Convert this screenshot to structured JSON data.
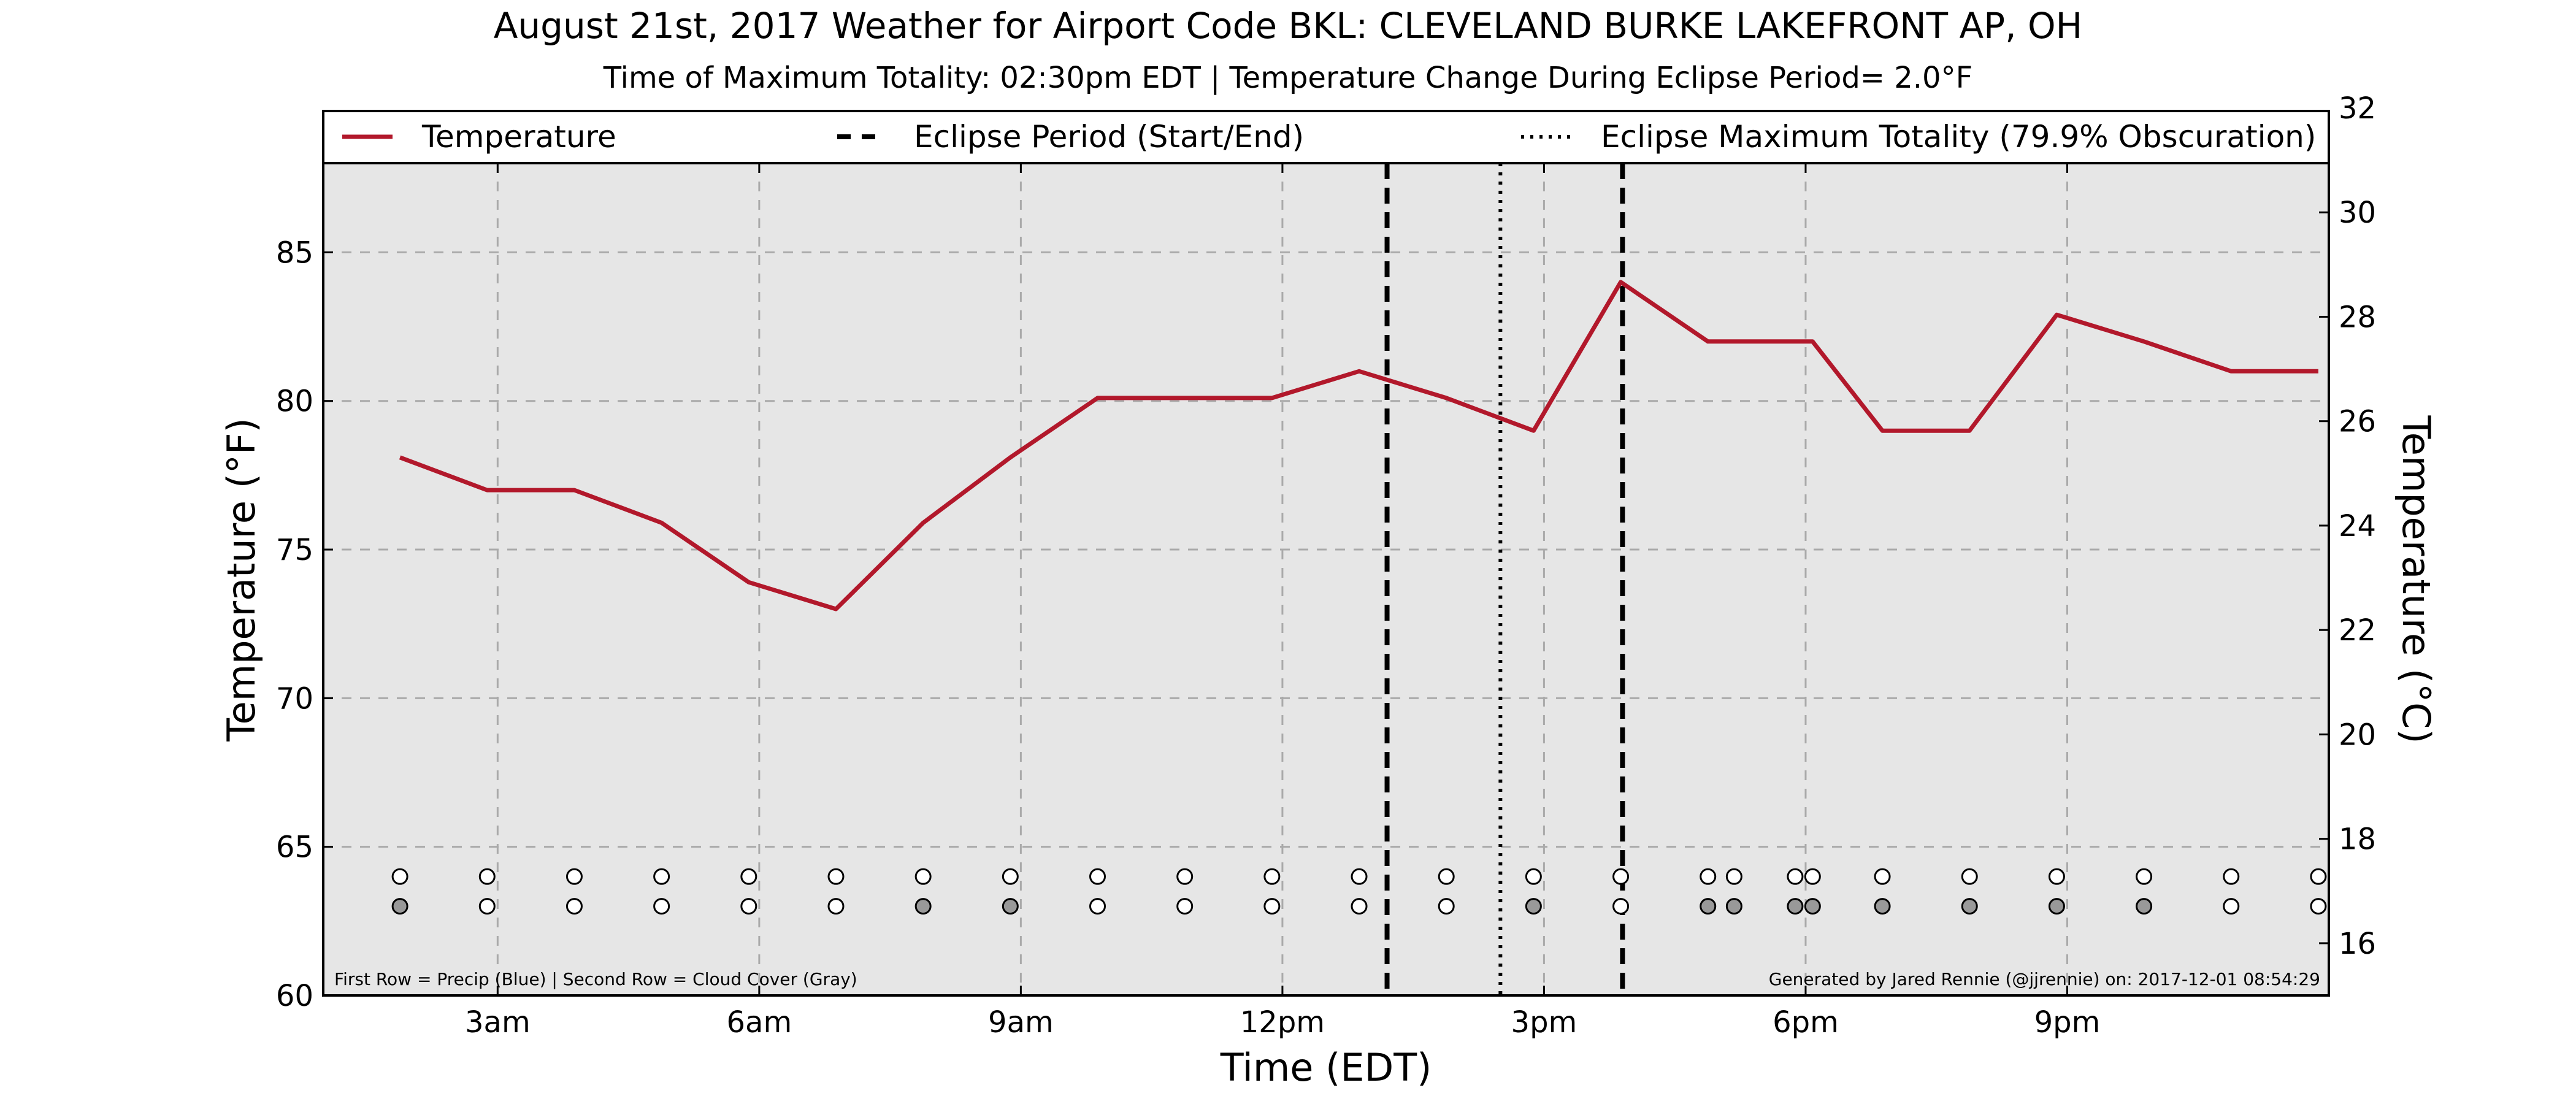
{
  "chart_data": {
    "type": "line",
    "title": "August 21st, 2017 Weather for Airport Code BKL: CLEVELAND BURKE LAKEFRONT AP, OH",
    "subtitle": "Time of Maximum Totality: 02:30pm EDT | Temperature Change During Eclipse Period= 2.0°F",
    "xlabel": "Time (EDT)",
    "ylabel": "Temperature (°F)",
    "y2label": "Temperature (°C)",
    "xlim": [
      1.0,
      24.0
    ],
    "ylim": [
      60,
      88
    ],
    "y2lim": [
      15,
      32
    ],
    "x_ticks": [
      {
        "x": 3,
        "label": "3am"
      },
      {
        "x": 6,
        "label": "6am"
      },
      {
        "x": 9,
        "label": "9am"
      },
      {
        "x": 12,
        "label": "12pm"
      },
      {
        "x": 15,
        "label": "3pm"
      },
      {
        "x": 18,
        "label": "6pm"
      },
      {
        "x": 21,
        "label": "9pm"
      }
    ],
    "y_ticks": [
      60,
      65,
      70,
      75,
      80,
      85
    ],
    "y2_ticks": [
      16,
      18,
      20,
      22,
      24,
      26,
      28,
      30,
      32
    ],
    "grid": true,
    "legend_placement": "top",
    "series": [
      {
        "name": "Temperature",
        "color": "#b2182b",
        "x": [
          1.88,
          2.88,
          3.88,
          4.88,
          5.88,
          6.88,
          7.88,
          8.88,
          9.88,
          10.88,
          11.88,
          12.88,
          13.88,
          14.88,
          15.88,
          16.88,
          17.88,
          18.08,
          18.88,
          19.88,
          20.88,
          21.88,
          22.88,
          23.88
        ],
        "y": [
          78.1,
          77.0,
          77.0,
          75.9,
          73.9,
          73.0,
          75.9,
          78.1,
          80.1,
          80.1,
          80.1,
          81.0,
          80.1,
          79.0,
          84.0,
          82.0,
          82.0,
          82.0,
          79.0,
          79.0,
          82.9,
          82.0,
          81.0,
          81.0
        ]
      }
    ],
    "eclipse": {
      "start": 13.2,
      "end": 15.9,
      "max_totality": 14.5,
      "start_end_label": "Eclipse Period (Start/End)",
      "max_label": "Eclipse Maximum Totality (79.9% Obscuration)"
    },
    "markers": {
      "precip_row": {
        "y": 64,
        "x": [
          1.88,
          2.88,
          3.88,
          4.88,
          5.88,
          6.88,
          7.88,
          8.88,
          9.88,
          10.88,
          11.88,
          12.88,
          13.88,
          14.88,
          15.88,
          16.88,
          17.18,
          17.88,
          18.08,
          18.88,
          19.88,
          20.88,
          21.88,
          22.88,
          23.88
        ],
        "filled": [
          false,
          false,
          false,
          false,
          false,
          false,
          false,
          false,
          false,
          false,
          false,
          false,
          false,
          false,
          false,
          false,
          false,
          false,
          false,
          false,
          false,
          false,
          false,
          false,
          false
        ]
      },
      "cloud_row": {
        "y": 63,
        "x": [
          1.88,
          2.88,
          3.88,
          4.88,
          5.88,
          6.88,
          7.88,
          8.88,
          9.88,
          10.88,
          11.88,
          12.88,
          13.88,
          14.88,
          15.88,
          16.88,
          17.18,
          17.88,
          18.08,
          18.88,
          19.88,
          20.88,
          21.88,
          22.88,
          23.88
        ],
        "filled": [
          true,
          false,
          false,
          false,
          false,
          false,
          true,
          true,
          false,
          false,
          false,
          false,
          false,
          true,
          false,
          true,
          true,
          true,
          true,
          true,
          true,
          true,
          true,
          false,
          false
        ]
      },
      "filled_color": "#999999",
      "empty_color": "#ffffff"
    },
    "footnote_left": "First Row = Precip (Blue) | Second Row = Cloud Cover (Gray)",
    "footnote_right": "Generated by Jared Rennie (@jjrennie) on: 2017-12-01 08:54:29"
  }
}
